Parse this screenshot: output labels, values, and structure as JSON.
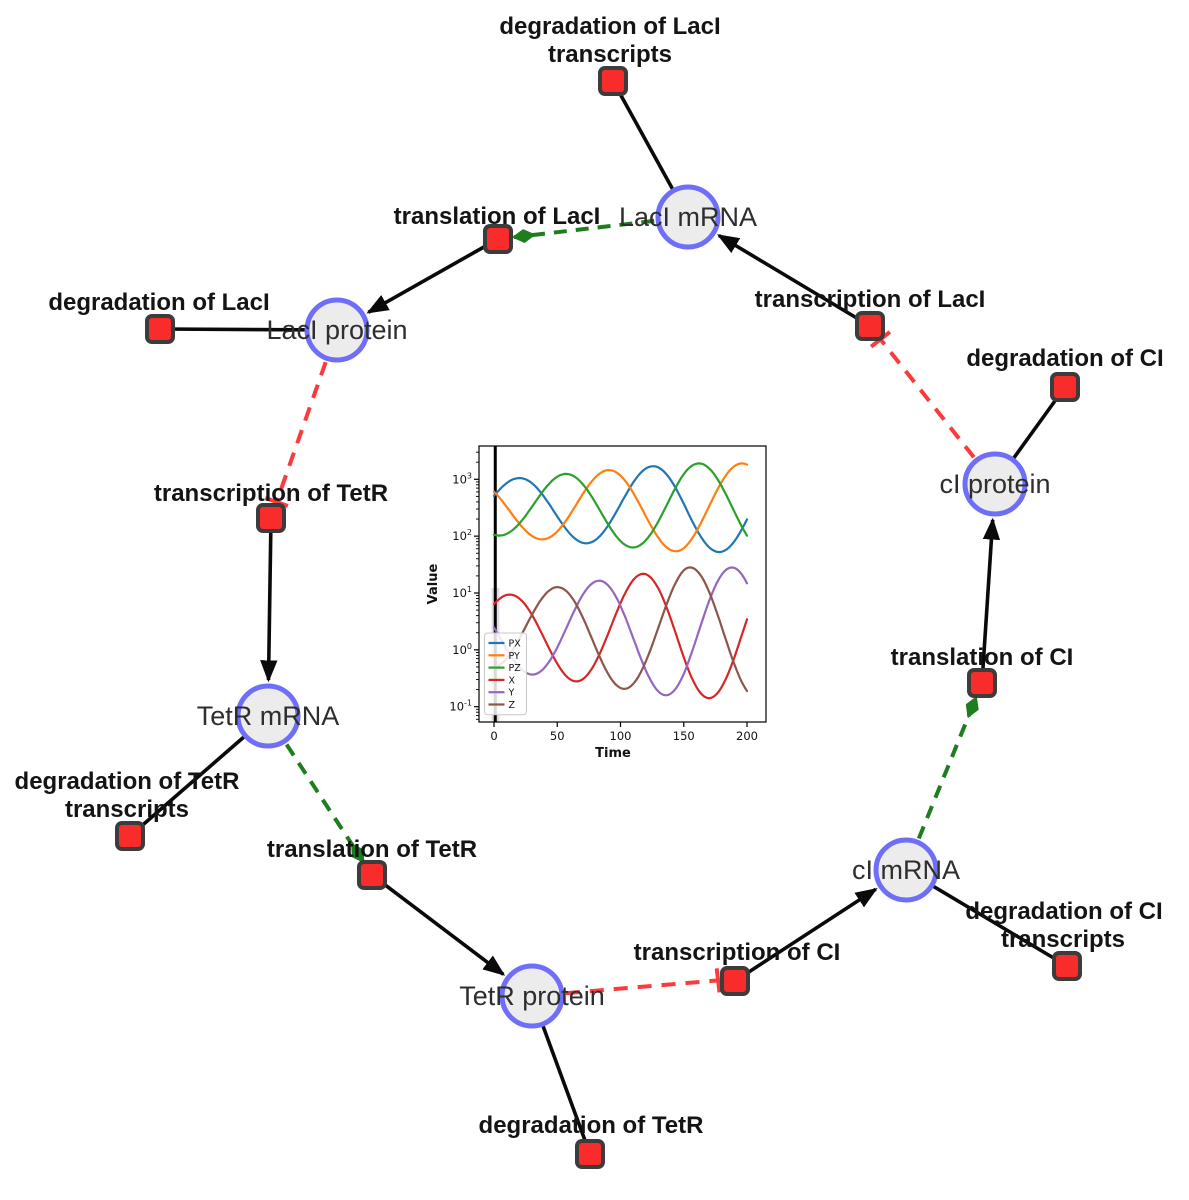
{
  "network": {
    "style": {
      "species_fill": "#ececec",
      "species_stroke": "#6e6ef8",
      "reaction_fill": "#f92c2c",
      "reaction_stroke": "#3c3c3c",
      "consumption_edge_color": "#0a0a0a",
      "activation_edge_color": "#1e7d1e",
      "inhibition_edge_color": "#f93b3b"
    },
    "species": [
      {
        "label": "LacI mRNA"
      },
      {
        "label": "LacI protein"
      },
      {
        "label": "TetR mRNA"
      },
      {
        "label": "TetR protein"
      },
      {
        "label": "cI mRNA"
      },
      {
        "label": "cI protein"
      }
    ],
    "reactions": [
      {
        "lines": [
          "degradation of LacI",
          "transcripts"
        ]
      },
      {
        "lines": [
          "translation of LacI"
        ]
      },
      {
        "lines": [
          "transcription of LacI"
        ]
      },
      {
        "lines": [
          "degradation of LacI"
        ]
      },
      {
        "lines": [
          "transcription of TetR"
        ]
      },
      {
        "lines": [
          "degradation of CI"
        ]
      },
      {
        "lines": [
          "translation of CI"
        ]
      },
      {
        "lines": [
          "degradation of TetR",
          "transcripts"
        ]
      },
      {
        "lines": [
          "translation of TetR"
        ]
      },
      {
        "lines": [
          "transcription of CI"
        ]
      },
      {
        "lines": [
          "degradation of CI",
          "transcripts"
        ]
      },
      {
        "lines": [
          "degradation of TetR"
        ]
      }
    ]
  },
  "chart_data": {
    "type": "line",
    "title": "",
    "xlabel": "Time",
    "ylabel": "Value",
    "x_range": [
      0,
      200
    ],
    "x_ticks": [
      0,
      50,
      100,
      150,
      200
    ],
    "y_scale": "log",
    "y_tick_base": "10",
    "y_tick_exponents": [
      -1,
      0,
      1,
      2,
      3
    ],
    "y_range_log10": [
      -1.27,
      3.586
    ],
    "grid": false,
    "legend_position": "lower left",
    "initial_spike_time": 1,
    "protein_band_range": [
      50,
      2100
    ],
    "mrna_band_range": [
      0.13,
      28
    ],
    "series": [
      {
        "name": "PX",
        "color": "#1f77b4",
        "log10_center": 2.5,
        "log10_amplitude": 0.78,
        "period": 106,
        "peak_time": 125,
        "amp_ramp": [
          0.62,
          150
        ],
        "peak_times": [
          19,
          125
        ],
        "approx_max": 1700,
        "approx_min": 55
      },
      {
        "name": "PY",
        "color": "#ff7f0e",
        "log10_center": 2.5,
        "log10_amplitude": 0.78,
        "period": 106,
        "peak_time": 196,
        "amp_ramp": [
          0.62,
          150
        ],
        "peak_times": [
          90,
          196
        ],
        "approx_max": 2100,
        "approx_min": 58
      },
      {
        "name": "PZ",
        "color": "#2ca02c",
        "log10_center": 2.5,
        "log10_amplitude": 0.78,
        "period": 106,
        "peak_time": 162,
        "amp_ramp": [
          0.62,
          150
        ],
        "peak_times": [
          56,
          162
        ],
        "approx_max": 1900,
        "approx_min": 56
      },
      {
        "name": "X",
        "color": "#d62728",
        "log10_center": 0.3,
        "log10_amplitude": 1.15,
        "period": 106,
        "peak_time": 117,
        "amp_ramp": [
          0.55,
          150
        ],
        "peak_times": [
          11,
          117
        ],
        "approx_max": 24,
        "approx_min": 0.13
      },
      {
        "name": "Y",
        "color": "#9467bd",
        "log10_center": 0.3,
        "log10_amplitude": 1.15,
        "period": 106,
        "peak_time": 188,
        "amp_ramp": [
          0.55,
          150
        ],
        "peak_times": [
          82,
          188
        ],
        "approx_max": 28,
        "approx_min": 0.15
      },
      {
        "name": "Z",
        "color": "#8c564b",
        "log10_center": 0.3,
        "log10_amplitude": 1.15,
        "period": 106,
        "peak_time": 155,
        "amp_ramp": [
          0.55,
          150
        ],
        "peak_times": [
          49,
          155
        ],
        "approx_max": 28,
        "approx_min": 0.14
      }
    ]
  }
}
